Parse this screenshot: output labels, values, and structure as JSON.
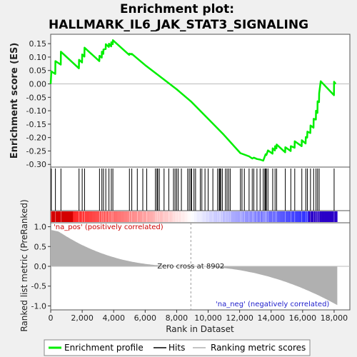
{
  "chart_data": {
    "type": "line",
    "title_line1": "Enrichment plot:",
    "title_line2": "HALLMARK_IL6_JAK_STAT3_SIGNALING",
    "es_panel": {
      "ylabel": "Enrichment score (ES)",
      "ylim": [
        -0.31,
        0.185
      ],
      "y_ticks": [
        -0.3,
        -0.25,
        -0.2,
        -0.15,
        -0.1,
        -0.05,
        0.0,
        0.05,
        0.1,
        0.15
      ],
      "grid": false
    },
    "metric_panel": {
      "ylabel": "Ranked list metric (PreRanked)",
      "xlabel": "Rank in Dataset",
      "ylim": [
        -1.1,
        1.1
      ],
      "y_ticks": [
        -1.0,
        -0.5,
        0.0,
        0.5,
        1.0
      ],
      "x_ticks": [
        0,
        2000,
        4000,
        6000,
        8000,
        10000,
        12000,
        14000,
        16000,
        18000
      ],
      "xlim": [
        0,
        19000
      ]
    },
    "n_genes": 18200,
    "zero_cross": 8902,
    "zero_cross_label": "Zero cross at 8902",
    "pos_label": "'na_pos' (positively correlated)",
    "neg_label": "'na_neg' (negatively correlated)",
    "hits": [
      40,
      300,
      650,
      1800,
      2000,
      2150,
      3100,
      3250,
      3350,
      3500,
      3700,
      3850,
      3950,
      5000,
      5150,
      5500,
      5850,
      6100,
      6650,
      6750,
      6800,
      6900,
      7200,
      7500,
      7800,
      7900,
      8000,
      8100,
      8300,
      8700,
      8800,
      8900,
      8950,
      9100,
      9200,
      9500,
      9600,
      9800,
      10000,
      10300,
      10600,
      10700,
      10750,
      10800,
      10900,
      11100,
      11200,
      11300,
      11400,
      12050,
      12150,
      12300,
      12600,
      12800,
      12900,
      13100,
      13300,
      13500,
      13600,
      13650,
      13700,
      13800,
      14100,
      14250,
      14350,
      14900,
      15250,
      15500,
      15950,
      16200,
      16300,
      16500,
      16700,
      16850,
      16950,
      17050,
      18000
    ],
    "es_curve": [
      [
        0,
        0.0
      ],
      [
        40,
        0.047
      ],
      [
        290,
        0.037
      ],
      [
        300,
        0.085
      ],
      [
        640,
        0.072
      ],
      [
        650,
        0.12
      ],
      [
        1790,
        0.058
      ],
      [
        1800,
        0.09
      ],
      [
        1990,
        0.08
      ],
      [
        2000,
        0.11
      ],
      [
        2140,
        0.102
      ],
      [
        2150,
        0.135
      ],
      [
        3090,
        0.085
      ],
      [
        3100,
        0.105
      ],
      [
        3240,
        0.098
      ],
      [
        3250,
        0.12
      ],
      [
        3340,
        0.112
      ],
      [
        3350,
        0.128
      ],
      [
        3490,
        0.13
      ],
      [
        3500,
        0.148
      ],
      [
        3690,
        0.138
      ],
      [
        3700,
        0.15
      ],
      [
        3840,
        0.14
      ],
      [
        3850,
        0.155
      ],
      [
        3940,
        0.148
      ],
      [
        3950,
        0.163
      ],
      [
        4990,
        0.108
      ],
      [
        5000,
        0.113
      ],
      [
        5140,
        0.11
      ],
      [
        5150,
        0.112
      ],
      [
        6000,
        0.07
      ],
      [
        7000,
        0.025
      ],
      [
        8000,
        -0.02
      ],
      [
        8900,
        -0.065
      ],
      [
        10000,
        -0.13
      ],
      [
        11000,
        -0.19
      ],
      [
        12050,
        -0.258
      ],
      [
        12600,
        -0.27
      ],
      [
        12800,
        -0.278
      ],
      [
        12900,
        -0.275
      ],
      [
        13100,
        -0.28
      ],
      [
        13300,
        -0.282
      ],
      [
        13500,
        -0.286
      ],
      [
        13600,
        -0.27
      ],
      [
        13650,
        -0.262
      ],
      [
        13700,
        -0.265
      ],
      [
        13800,
        -0.248
      ],
      [
        14090,
        -0.26
      ],
      [
        14100,
        -0.24
      ],
      [
        14240,
        -0.248
      ],
      [
        14250,
        -0.232
      ],
      [
        14340,
        -0.24
      ],
      [
        14350,
        -0.226
      ],
      [
        14890,
        -0.255
      ],
      [
        14900,
        -0.236
      ],
      [
        15240,
        -0.25
      ],
      [
        15250,
        -0.232
      ],
      [
        15490,
        -0.238
      ],
      [
        15500,
        -0.214
      ],
      [
        15940,
        -0.232
      ],
      [
        15950,
        -0.21
      ],
      [
        16190,
        -0.222
      ],
      [
        16200,
        -0.198
      ],
      [
        16290,
        -0.2
      ],
      [
        16300,
        -0.178
      ],
      [
        16490,
        -0.183
      ],
      [
        16500,
        -0.155
      ],
      [
        16690,
        -0.163
      ],
      [
        16700,
        -0.13
      ],
      [
        16840,
        -0.133
      ],
      [
        16850,
        -0.1
      ],
      [
        16940,
        -0.108
      ],
      [
        16950,
        -0.065
      ],
      [
        17040,
        -0.068
      ],
      [
        17050,
        -0.035
      ],
      [
        17150,
        0.01
      ],
      [
        17990,
        -0.042
      ],
      [
        18000,
        0.008
      ],
      [
        18100,
        0.0
      ]
    ],
    "legend": [
      {
        "label": "Enrichment profile",
        "color": "#00ee00"
      },
      {
        "label": "Hits",
        "color": "#000000"
      },
      {
        "label": "Ranking metric scores",
        "color": "#b0b0b0"
      }
    ],
    "colors": {
      "es_line": "#00ee00",
      "metric_fill": "#b0b0b0",
      "pos_text": "#cc0000",
      "neg_text": "#2020cc",
      "zero_line": "#999999"
    }
  }
}
